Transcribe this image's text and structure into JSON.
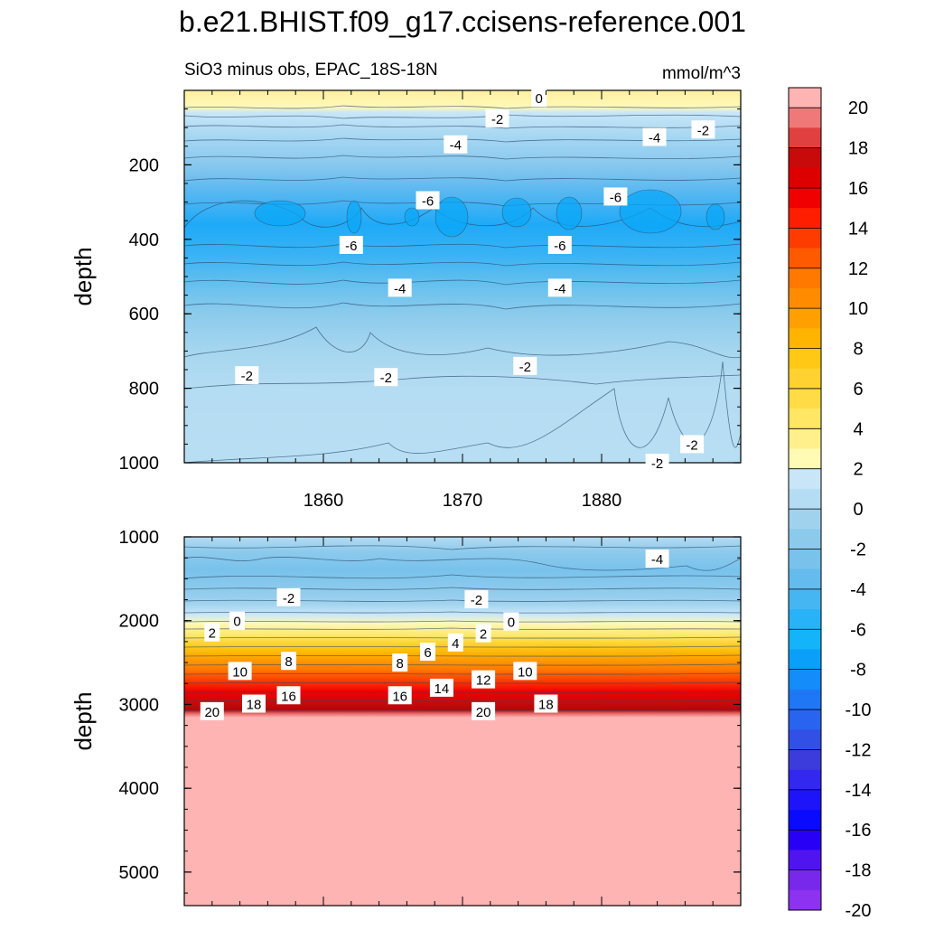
{
  "chart_data": [
    {
      "type": "contour",
      "panel": "upper",
      "title": "b.e21.BHIST.f09_g17.ccisens-reference.001",
      "left_subtitle": "SiO3 minus obs, EPAC_18S-18N",
      "right_subtitle": "mmol/m^3",
      "xlabel": "",
      "ylabel": "depth",
      "xlim": [
        1850,
        1890
      ],
      "ylim": [
        1000,
        0
      ],
      "xticks": [
        1860,
        1870,
        1880
      ],
      "yticks": [
        200,
        400,
        600,
        800,
        1000
      ],
      "contour_labels": [
        {
          "text": "0",
          "x": 1875.5,
          "y": 20
        },
        {
          "text": "-2",
          "x": 1872.5,
          "y": 75
        },
        {
          "text": "-2",
          "x": 1887.3,
          "y": 105
        },
        {
          "text": "-4",
          "x": 1869.5,
          "y": 145
        },
        {
          "text": "-4",
          "x": 1883.8,
          "y": 125
        },
        {
          "text": "-6",
          "x": 1867.5,
          "y": 295
        },
        {
          "text": "-6",
          "x": 1881.0,
          "y": 285
        },
        {
          "text": "-6",
          "x": 1862.0,
          "y": 415
        },
        {
          "text": "-6",
          "x": 1877.0,
          "y": 415
        },
        {
          "text": "-4",
          "x": 1865.5,
          "y": 530
        },
        {
          "text": "-4",
          "x": 1877.0,
          "y": 530
        },
        {
          "text": "-2",
          "x": 1854.5,
          "y": 765
        },
        {
          "text": "-2",
          "x": 1874.5,
          "y": 740
        },
        {
          "text": "-2",
          "x": 1864.5,
          "y": 770
        },
        {
          "text": "-2",
          "x": 1886.5,
          "y": 950
        },
        {
          "text": "-2",
          "x": 1884.0,
          "y": 1000
        }
      ]
    },
    {
      "type": "contour",
      "panel": "lower",
      "xlabel": "",
      "ylabel": "depth",
      "xlim": [
        1850,
        1890
      ],
      "ylim": [
        5400,
        1000
      ],
      "yticks": [
        1000,
        2000,
        3000,
        4000,
        5000
      ],
      "contour_labels": [
        {
          "text": "-4",
          "x": 1884.0,
          "y": 1260
        },
        {
          "text": "-2",
          "x": 1857.5,
          "y": 1720
        },
        {
          "text": "-2",
          "x": 1871.0,
          "y": 1745
        },
        {
          "text": "0",
          "x": 1853.8,
          "y": 2000
        },
        {
          "text": "0",
          "x": 1873.5,
          "y": 2010
        },
        {
          "text": "2",
          "x": 1852.0,
          "y": 2140
        },
        {
          "text": "2",
          "x": 1871.5,
          "y": 2150
        },
        {
          "text": "4",
          "x": 1869.5,
          "y": 2260
        },
        {
          "text": "6",
          "x": 1867.5,
          "y": 2370
        },
        {
          "text": "8",
          "x": 1857.5,
          "y": 2480
        },
        {
          "text": "8",
          "x": 1865.5,
          "y": 2500
        },
        {
          "text": "10",
          "x": 1854.0,
          "y": 2600
        },
        {
          "text": "10",
          "x": 1874.5,
          "y": 2600
        },
        {
          "text": "12",
          "x": 1871.5,
          "y": 2700
        },
        {
          "text": "14",
          "x": 1868.5,
          "y": 2800
        },
        {
          "text": "16",
          "x": 1857.5,
          "y": 2890
        },
        {
          "text": "16",
          "x": 1865.5,
          "y": 2890
        },
        {
          "text": "18",
          "x": 1855.0,
          "y": 2990
        },
        {
          "text": "18",
          "x": 1876.0,
          "y": 2990
        },
        {
          "text": "20",
          "x": 1852.0,
          "y": 3080
        },
        {
          "text": "20",
          "x": 1871.5,
          "y": 3080
        }
      ]
    }
  ],
  "colorbar": {
    "levels": [
      "20",
      "18",
      "16",
      "14",
      "12",
      "10",
      "8",
      "6",
      "4",
      "2",
      "0",
      "-2",
      "-4",
      "-6",
      "-8",
      "-10",
      "-12",
      "-14",
      "-16",
      "-18",
      "-20"
    ],
    "colors": [
      "#ffb4b4",
      "#f07878",
      "#e04040",
      "#c80a0a",
      "#dc0000",
      "#f00000",
      "#ff1e00",
      "#ff3c00",
      "#ff5a00",
      "#ff7800",
      "#ff8c00",
      "#ffa000",
      "#ffb400",
      "#ffc814",
      "#ffd232",
      "#ffdc46",
      "#ffe664",
      "#fff08c",
      "#fffab4",
      "#c8e6f8",
      "#b4dcf2",
      "#a0d2ee",
      "#8ccaec",
      "#78c2ec",
      "#64bcee",
      "#46b6f2",
      "#28b2f8",
      "#14b4fa",
      "#0aa0fa",
      "#148cfa",
      "#1e78f5",
      "#2864f0",
      "#3250e6",
      "#3c3cdc",
      "#3228f0",
      "#1e14fa",
      "#0a0aff",
      "#2800f5",
      "#5014f0",
      "#7828eb",
      "#8c32f0"
    ]
  }
}
